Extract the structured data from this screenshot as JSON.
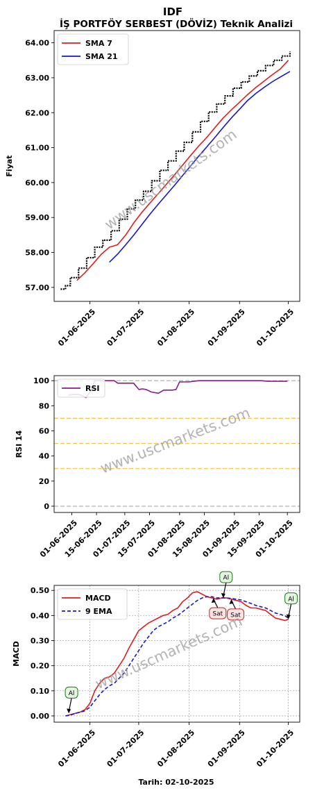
{
  "title": "IDF",
  "subtitle": "İŞ PORTFÖY SERBEST (DÖVİZ) Teknik Analizi",
  "watermark": "www.uscmarkets.com",
  "xlabel": "Tarih: 02-10-2025",
  "colors": {
    "price": "#000000",
    "sma7": "#e31a1c",
    "sma21": "#1515cc",
    "rsi": "#8b1a8b",
    "macd": "#e31a1c",
    "ema9": "#1515cc",
    "buy_fill": "#e4f5e0",
    "buy_edge": "#1a7a1a",
    "sell_fill": "#fbe2e2",
    "sell_edge": "#cc2222",
    "band_gray": "#b0b0b0",
    "band_gold": "#f5c445"
  },
  "chart_data": [
    {
      "type": "line",
      "name": "price_panel",
      "ylabel": "Fiyat",
      "ylim": [
        56.6,
        64.35
      ],
      "yticks": [
        57.0,
        58.0,
        59.0,
        60.0,
        61.0,
        62.0,
        63.0,
        64.0
      ],
      "ytick_labels": [
        "57.00",
        "58.00",
        "59.00",
        "60.00",
        "61.00",
        "62.00",
        "63.00",
        "64.00"
      ],
      "xlim": [
        "2025-05-10",
        "2025-10-08"
      ],
      "xticks": [
        "2025-06-01",
        "2025-07-01",
        "2025-08-01",
        "2025-09-01",
        "2025-10-01"
      ],
      "xtick_labels": [
        "01-06-2025",
        "01-07-2025",
        "01-08-2025",
        "01-09-2025",
        "01-10-2025"
      ],
      "legend": {
        "position": "top-left",
        "entries": [
          "SMA 7",
          "SMA 21"
        ]
      },
      "grid": false,
      "series": [
        {
          "name": "price",
          "style": "steps",
          "x": [
            "2025-05-14",
            "2025-05-17",
            "2025-05-20",
            "2025-05-25",
            "2025-05-30",
            "2025-06-04",
            "2025-06-09",
            "2025-06-14",
            "2025-06-19",
            "2025-06-24",
            "2025-06-29",
            "2025-07-04",
            "2025-07-09",
            "2025-07-14",
            "2025-07-19",
            "2025-07-24",
            "2025-07-29",
            "2025-08-03",
            "2025-08-08",
            "2025-08-13",
            "2025-08-18",
            "2025-08-23",
            "2025-08-28",
            "2025-09-02",
            "2025-09-07",
            "2025-09-12",
            "2025-09-17",
            "2025-09-22",
            "2025-09-27",
            "2025-10-02"
          ],
          "y": [
            56.95,
            57.05,
            57.28,
            57.55,
            57.85,
            58.15,
            58.35,
            58.62,
            58.95,
            59.25,
            59.5,
            59.75,
            60.05,
            60.35,
            60.62,
            60.9,
            61.15,
            61.45,
            61.75,
            62.02,
            62.25,
            62.48,
            62.7,
            62.88,
            63.05,
            63.2,
            63.35,
            63.5,
            63.62,
            63.75
          ]
        },
        {
          "name": "SMA 7",
          "x": [
            "2025-05-24",
            "2025-05-29",
            "2025-06-03",
            "2025-06-08",
            "2025-06-13",
            "2025-06-18",
            "2025-06-23",
            "2025-06-28",
            "2025-07-03",
            "2025-07-08",
            "2025-07-13",
            "2025-07-18",
            "2025-07-23",
            "2025-07-28",
            "2025-08-02",
            "2025-08-07",
            "2025-08-12",
            "2025-08-17",
            "2025-08-22",
            "2025-08-27",
            "2025-09-01",
            "2025-09-06",
            "2025-09-11",
            "2025-09-16",
            "2025-09-21",
            "2025-09-26",
            "2025-10-01"
          ],
          "y": [
            57.2,
            57.42,
            57.68,
            57.95,
            58.15,
            58.22,
            58.5,
            58.85,
            59.15,
            59.42,
            59.68,
            59.95,
            60.22,
            60.5,
            60.78,
            61.05,
            61.3,
            61.58,
            61.85,
            62.08,
            62.3,
            62.52,
            62.72,
            62.9,
            63.08,
            63.25,
            63.5
          ]
        },
        {
          "name": "SMA 21",
          "x": [
            "2025-06-13",
            "2025-06-18",
            "2025-06-23",
            "2025-06-28",
            "2025-07-03",
            "2025-07-08",
            "2025-07-13",
            "2025-07-18",
            "2025-07-23",
            "2025-07-28",
            "2025-08-02",
            "2025-08-07",
            "2025-08-12",
            "2025-08-17",
            "2025-08-22",
            "2025-08-27",
            "2025-09-01",
            "2025-09-06",
            "2025-09-11",
            "2025-09-16",
            "2025-09-21",
            "2025-09-26",
            "2025-10-02"
          ],
          "y": [
            57.72,
            57.95,
            58.22,
            58.5,
            58.8,
            59.1,
            59.38,
            59.65,
            59.92,
            60.2,
            60.48,
            60.76,
            61.03,
            61.3,
            61.58,
            61.85,
            62.1,
            62.35,
            62.55,
            62.72,
            62.88,
            63.02,
            63.18
          ]
        }
      ]
    },
    {
      "type": "line",
      "name": "rsi_panel",
      "ylabel": "RSI 14",
      "ylim": [
        -5,
        104
      ],
      "yticks": [
        0,
        20,
        40,
        60,
        80,
        100
      ],
      "ytick_labels": [
        "0",
        "20",
        "40",
        "60",
        "80",
        "100"
      ],
      "xlim": [
        "2025-05-22",
        "2025-10-08"
      ],
      "xticks": [
        "2025-06-01",
        "2025-06-15",
        "2025-07-01",
        "2025-07-15",
        "2025-08-01",
        "2025-08-15",
        "2025-09-01",
        "2025-09-15",
        "2025-10-01"
      ],
      "xtick_labels": [
        "01-06-2025",
        "15-06-2025",
        "01-07-2025",
        "15-07-2025",
        "01-08-2025",
        "15-08-2025",
        "01-09-2025",
        "15-09-2025",
        "01-10-2025"
      ],
      "hlines": [
        {
          "y": 100,
          "color": "gray"
        },
        {
          "y": 70,
          "color": "gold"
        },
        {
          "y": 50,
          "color": "gold"
        },
        {
          "y": 30,
          "color": "gold"
        },
        {
          "y": 0,
          "color": "gray"
        }
      ],
      "legend": {
        "position": "top-left",
        "entries": [
          "RSI"
        ]
      },
      "grid": false,
      "series": [
        {
          "name": "RSI",
          "x": [
            "2025-05-30",
            "2025-06-02",
            "2025-06-05",
            "2025-06-07",
            "2025-06-09",
            "2025-06-12",
            "2025-06-14",
            "2025-06-18",
            "2025-06-22",
            "2025-06-25",
            "2025-06-27",
            "2025-07-02",
            "2025-07-06",
            "2025-07-09",
            "2025-07-11",
            "2025-07-13",
            "2025-07-16",
            "2025-07-20",
            "2025-07-23",
            "2025-07-25",
            "2025-07-28",
            "2025-07-30",
            "2025-08-01",
            "2025-08-06",
            "2025-08-12",
            "2025-08-20",
            "2025-08-28",
            "2025-09-05",
            "2025-09-10",
            "2025-09-16",
            "2025-09-20",
            "2025-09-25",
            "2025-10-01"
          ],
          "y": [
            88.5,
            89,
            89,
            88,
            86.5,
            92,
            100,
            100,
            100,
            100,
            98,
            98,
            98,
            93,
            93.5,
            93,
            91,
            90,
            92.5,
            92.5,
            92.5,
            93,
            99,
            99,
            100,
            100,
            100,
            100,
            100,
            100,
            99.5,
            99.5,
            99.5
          ]
        }
      ]
    },
    {
      "type": "line",
      "name": "macd_panel",
      "ylabel": "MACD",
      "ylim": [
        -0.025,
        0.52
      ],
      "yticks": [
        0.0,
        0.1,
        0.2,
        0.3,
        0.4,
        0.5
      ],
      "ytick_labels": [
        "0.00",
        "0.10",
        "0.20",
        "0.30",
        "0.40",
        "0.50"
      ],
      "xlim": [
        "2025-05-10",
        "2025-10-08"
      ],
      "xticks": [
        "2025-06-01",
        "2025-07-01",
        "2025-08-01",
        "2025-09-01",
        "2025-10-01"
      ],
      "xtick_labels": [
        "01-06-2025",
        "01-07-2025",
        "01-08-2025",
        "01-09-2025",
        "01-10-2025"
      ],
      "legend": {
        "position": "top-left",
        "entries": [
          "MACD",
          "9 EMA"
        ]
      },
      "grid": true,
      "series": [
        {
          "name": "MACD",
          "x": [
            "2025-05-17",
            "2025-05-20",
            "2025-05-23",
            "2025-05-26",
            "2025-05-29",
            "2025-06-01",
            "2025-06-04",
            "2025-06-07",
            "2025-06-10",
            "2025-06-13",
            "2025-06-16",
            "2025-06-19",
            "2025-06-22",
            "2025-06-25",
            "2025-06-28",
            "2025-07-01",
            "2025-07-04",
            "2025-07-07",
            "2025-07-10",
            "2025-07-13",
            "2025-07-16",
            "2025-07-19",
            "2025-07-22",
            "2025-07-25",
            "2025-07-28",
            "2025-07-31",
            "2025-08-03",
            "2025-08-06",
            "2025-08-09",
            "2025-08-12",
            "2025-08-15",
            "2025-08-18",
            "2025-08-21",
            "2025-08-24",
            "2025-08-27",
            "2025-08-30",
            "2025-09-02",
            "2025-09-05",
            "2025-09-08",
            "2025-09-11",
            "2025-09-14",
            "2025-09-17",
            "2025-09-20",
            "2025-09-23",
            "2025-09-26",
            "2025-09-29",
            "2025-10-01"
          ],
          "y": [
            0.0,
            0.005,
            0.01,
            0.015,
            0.025,
            0.05,
            0.1,
            0.13,
            0.15,
            0.155,
            0.17,
            0.2,
            0.23,
            0.27,
            0.305,
            0.34,
            0.355,
            0.37,
            0.38,
            0.39,
            0.4,
            0.405,
            0.42,
            0.43,
            0.455,
            0.47,
            0.49,
            0.495,
            0.485,
            0.475,
            0.47,
            0.465,
            0.47,
            0.47,
            0.465,
            0.46,
            0.455,
            0.44,
            0.43,
            0.43,
            0.425,
            0.42,
            0.405,
            0.39,
            0.385,
            0.38,
            0.385
          ]
        },
        {
          "name": "9 EMA",
          "x": [
            "2025-05-17",
            "2025-05-20",
            "2025-05-23",
            "2025-05-26",
            "2025-05-29",
            "2025-06-01",
            "2025-06-04",
            "2025-06-07",
            "2025-06-10",
            "2025-06-13",
            "2025-06-16",
            "2025-06-19",
            "2025-06-22",
            "2025-06-25",
            "2025-06-28",
            "2025-07-01",
            "2025-07-04",
            "2025-07-07",
            "2025-07-10",
            "2025-07-13",
            "2025-07-16",
            "2025-07-19",
            "2025-07-22",
            "2025-07-25",
            "2025-07-28",
            "2025-07-31",
            "2025-08-03",
            "2025-08-06",
            "2025-08-09",
            "2025-08-12",
            "2025-08-15",
            "2025-08-18",
            "2025-08-21",
            "2025-08-24",
            "2025-08-27",
            "2025-08-30",
            "2025-09-02",
            "2025-09-05",
            "2025-09-08",
            "2025-09-11",
            "2025-09-14",
            "2025-09-17",
            "2025-09-20",
            "2025-09-23",
            "2025-09-26",
            "2025-09-29",
            "2025-10-01"
          ],
          "y": [
            0.0,
            0.003,
            0.01,
            0.015,
            0.02,
            0.035,
            0.06,
            0.085,
            0.105,
            0.12,
            0.13,
            0.15,
            0.17,
            0.2,
            0.23,
            0.26,
            0.29,
            0.315,
            0.34,
            0.355,
            0.365,
            0.375,
            0.39,
            0.4,
            0.415,
            0.43,
            0.445,
            0.46,
            0.47,
            0.475,
            0.475,
            0.47,
            0.47,
            0.47,
            0.468,
            0.465,
            0.462,
            0.455,
            0.448,
            0.44,
            0.435,
            0.43,
            0.42,
            0.41,
            0.405,
            0.398,
            0.39
          ]
        }
      ],
      "annotations": [
        {
          "text": "Al",
          "kind": "buy",
          "x": "2025-05-19",
          "y": 0.01,
          "dir": "up"
        },
        {
          "text": "Sat",
          "kind": "sell",
          "x": "2025-08-16",
          "y": 0.47,
          "dir": "down"
        },
        {
          "text": "Al",
          "kind": "buy",
          "x": "2025-08-22",
          "y": 0.47,
          "dir": "up"
        },
        {
          "text": "Sat",
          "kind": "sell",
          "x": "2025-08-27",
          "y": 0.465,
          "dir": "down"
        },
        {
          "text": "Al",
          "kind": "buy",
          "x": "2025-10-01",
          "y": 0.385,
          "dir": "up"
        }
      ]
    }
  ]
}
